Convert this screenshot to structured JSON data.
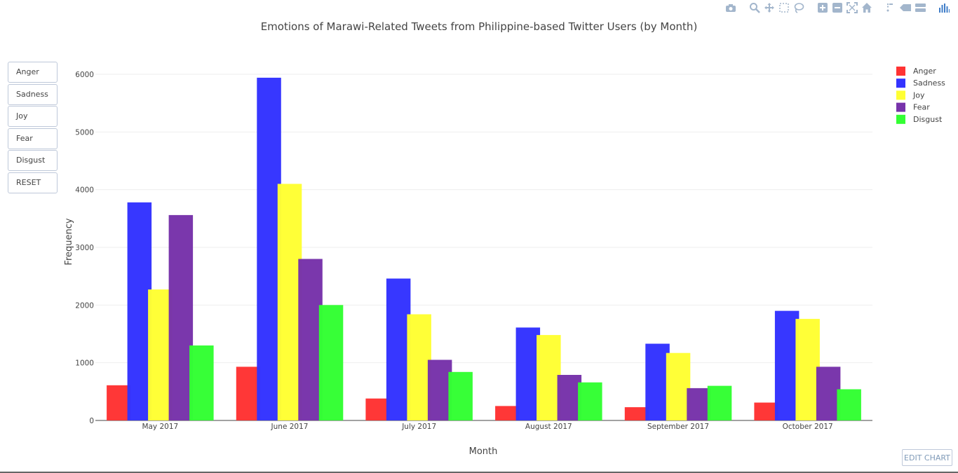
{
  "toolbar": {
    "icons": [
      "camera-icon",
      "zoom-icon",
      "pan-icon",
      "box-select-icon",
      "lasso-icon",
      "zoom-in-icon",
      "zoom-out-icon",
      "autoscale-icon",
      "reset-axes-icon",
      "spike-lines-icon",
      "hover-closest-icon",
      "hover-compare-icon",
      "plotly-logo-icon"
    ],
    "icon_color": "#a3b6cc",
    "logo_color": "#3f7dc8"
  },
  "menu": {
    "buttons": [
      "Anger",
      "Sadness",
      "Joy",
      "Fear",
      "Disgust",
      "RESET"
    ]
  },
  "edit_chart_label": "EDIT CHART",
  "chart_data": {
    "type": "bar",
    "title": "Emotions of Marawi-Related Tweets from Philippine-based Twitter Users (by Month)",
    "xlabel": "Month",
    "ylabel": "Frequency",
    "ylim": [
      0,
      6000
    ],
    "yticks": [
      0,
      1000,
      2000,
      3000,
      4000,
      5000,
      6000
    ],
    "categories": [
      "May 2017",
      "June 2017",
      "July 2017",
      "August 2017",
      "September 2017",
      "October 2017"
    ],
    "series": [
      {
        "name": "Anger",
        "color": "#ff3333",
        "values": [
          610,
          930,
          380,
          250,
          230,
          310
        ]
      },
      {
        "name": "Sadness",
        "color": "#3333ff",
        "values": [
          3780,
          5940,
          2460,
          1610,
          1330,
          1900
        ]
      },
      {
        "name": "Joy",
        "color": "#ffff33",
        "values": [
          2270,
          4100,
          1840,
          1480,
          1170,
          1760
        ]
      },
      {
        "name": "Fear",
        "color": "#7733aa",
        "values": [
          3560,
          2800,
          1050,
          790,
          560,
          930
        ]
      },
      {
        "name": "Disgust",
        "color": "#33ff33",
        "values": [
          1300,
          2000,
          840,
          660,
          600,
          540
        ]
      }
    ],
    "grid": true,
    "legend_position": "top-right"
  }
}
